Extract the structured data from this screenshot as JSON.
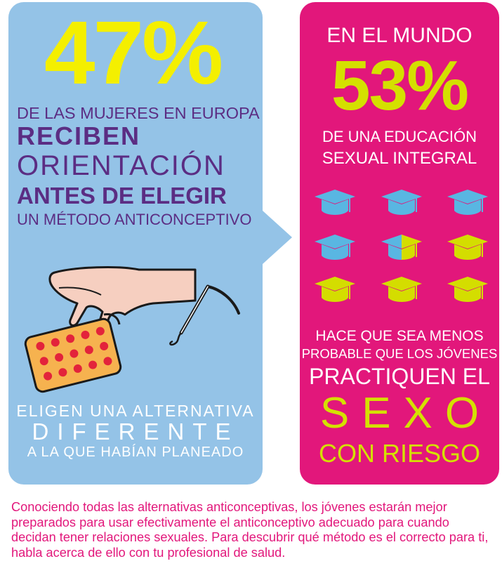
{
  "left": {
    "stat": "47%",
    "line1": "DE LAS MUJERES EN EUROPA",
    "line2": "RECIBEN",
    "line3": "ORIENTACIÓN",
    "line4": "ANTES DE ELEGIR",
    "line5": "UN MÉTODO ANTICONCEPTIVO",
    "bottom1": "ELIGEN UNA ALTERNATIVA",
    "bottom2": "DIFERENTE",
    "bottom3": "A LA QUE HABÍAN PLANEADO"
  },
  "right": {
    "heading": "EN EL MUNDO",
    "stat": "53%",
    "line1": "DE UNA EDUCACIÓN",
    "line2": "SEXUAL INTEGRAL",
    "bottom1": "HACE QUE SEA MENOS",
    "bottom2": "PROBABLE QUE LOS JÓVENES",
    "bottom3": "PRACTIQUEN EL",
    "bottom4": "SEXO",
    "bottom5": "CON RIESGO"
  },
  "caps": {
    "total": 9,
    "blue_fraction": 0.47,
    "colors": {
      "blue": "#59b6e2",
      "yellow": "#d4dd00"
    }
  },
  "colors": {
    "left_bg": "#94c3e7",
    "right_bg": "#e2177b",
    "yellow": "#f4ef00",
    "purple": "#5b2d83",
    "pill_red": "#e3233b",
    "pack": "#f6b24f"
  },
  "footer": "Conociendo todas las alternativas anticonceptivas, los jóvenes estarán mejor preparados para usar efectivamente el anticonceptivo adecuado para cuando decidan tener relaciones sexuales. Para descubrir qué método es el correcto para ti, habla acerca de ello con tu profesional de salud."
}
